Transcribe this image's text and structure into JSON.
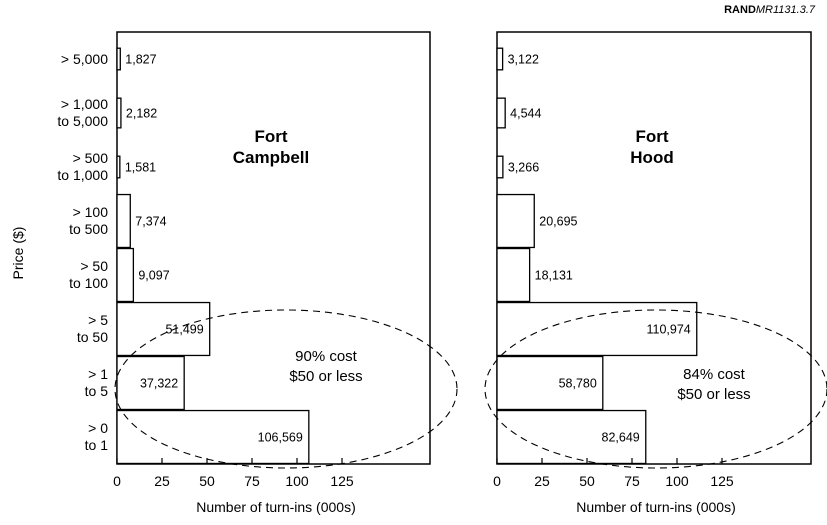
{
  "reference": {
    "prefix": "RAND",
    "code": "MR1131.3.7"
  },
  "y_axis_label": "Price ($)",
  "notes": [
    {
      "line1": "90% cost",
      "line2": "$50 or less"
    },
    {
      "line1": "84% cost",
      "line2": "$50 or less"
    }
  ],
  "chart_data": [
    {
      "type": "bar",
      "orientation": "horizontal",
      "title_line1": "Fort",
      "title_line2": "Campbell",
      "xlabel": "Number of turn-ins (000s)",
      "ylabel": "Price ($)",
      "xlim": [
        0,
        125
      ],
      "xticks": [
        0,
        25,
        50,
        75,
        100,
        125
      ],
      "categories": [
        {
          "line1": "> 5,000",
          "line2": ""
        },
        {
          "line1": "> 1,000",
          "line2": "to 5,000"
        },
        {
          "line1": "> 500",
          "line2": "to 1,000"
        },
        {
          "line1": "> 100",
          "line2": "to  500"
        },
        {
          "line1": "> 50",
          "line2": "to 100"
        },
        {
          "line1": "> 5",
          "line2": "to 50"
        },
        {
          "line1": "> 1",
          "line2": "to 5"
        },
        {
          "line1": "> 0",
          "line2": "to 1"
        }
      ],
      "values": [
        1.827,
        2.182,
        1.581,
        7.374,
        9.097,
        51.499,
        37.322,
        106.569
      ],
      "data_labels": [
        "1,827",
        "2,182",
        "1,581",
        "7,374",
        "9,097",
        "51,499",
        "37,322",
        "106,569"
      ]
    },
    {
      "type": "bar",
      "orientation": "horizontal",
      "title_line1": "Fort",
      "title_line2": "Hood",
      "xlabel": "Number of turn-ins (000s)",
      "xlim": [
        0,
        125
      ],
      "xticks": [
        0,
        25,
        50,
        75,
        100,
        125
      ],
      "values": [
        3.122,
        4.544,
        3.266,
        20.695,
        18.131,
        110.974,
        58.78,
        82.649
      ],
      "data_labels": [
        "3,122",
        "4,544",
        "3,266",
        "20,695",
        "18,131",
        "110,974",
        "58,780",
        "82,649"
      ]
    }
  ]
}
